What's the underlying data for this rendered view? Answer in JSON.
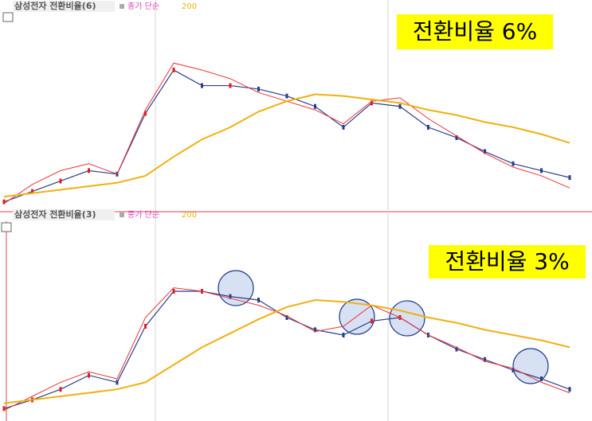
{
  "chart_data": [
    {
      "type": "line",
      "title": "삼성전자 전환비율(6)",
      "ma_label": "종가 단순",
      "ma_period": 200,
      "annotation": "전환비율 6%",
      "ylim": [
        0,
        100
      ],
      "series": [
        {
          "color": "#2a3f8a",
          "values": [
            2,
            8,
            14,
            20,
            18,
            53,
            78,
            69,
            69,
            67,
            63,
            57,
            45,
            59,
            57,
            45,
            39,
            31,
            24,
            20,
            16
          ]
        },
        {
          "color": "#ee3333",
          "values": [
            1,
            12,
            20,
            24,
            18,
            55,
            82,
            78,
            73,
            65,
            60,
            55,
            47,
            60,
            62,
            50,
            40,
            30,
            22,
            17,
            10
          ]
        },
        {
          "name": "종가 단순",
          "color": "#f0b010",
          "values": [
            5,
            7,
            9,
            11,
            13,
            17,
            28,
            38,
            45,
            54,
            60,
            64,
            63,
            61,
            59,
            55,
            52,
            48,
            45,
            41,
            36
          ]
        }
      ]
    },
    {
      "type": "line",
      "title": "삼성전자 전환비율(3)",
      "ma_label": "종가 단순",
      "ma_period": 200,
      "annotation": "전환비율 3%",
      "ylim": [
        0,
        100
      ],
      "series": [
        {
          "color": "#2a3f8a",
          "values": [
            3,
            8,
            14,
            22,
            18,
            50,
            70,
            70,
            67,
            65,
            55,
            48,
            45,
            53,
            55,
            45,
            37,
            31,
            25,
            20,
            14
          ]
        },
        {
          "color": "#ee3333",
          "values": [
            2,
            10,
            18,
            24,
            20,
            55,
            72,
            70,
            66,
            62,
            56,
            47,
            50,
            62,
            55,
            45,
            38,
            30,
            26,
            18,
            12
          ]
        },
        {
          "name": "종가 단순",
          "color": "#f0b010",
          "values": [
            6,
            8,
            10,
            12,
            14,
            18,
            28,
            38,
            46,
            54,
            61,
            65,
            64,
            62,
            59,
            55,
            52,
            48,
            45,
            42,
            38
          ]
        }
      ]
    }
  ]
}
